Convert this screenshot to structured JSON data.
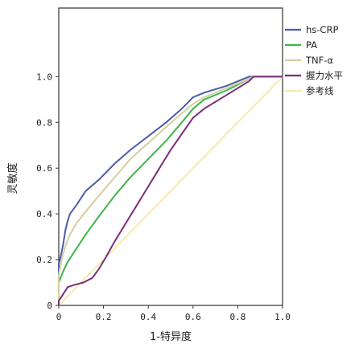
{
  "chart_data": {
    "type": "line",
    "xlabel": "1-特异度",
    "ylabel": "灵敏度",
    "xlim": [
      0,
      1.0
    ],
    "ylim": [
      0,
      1.3
    ],
    "x_ticks": [
      "0",
      "0.2",
      "0.4",
      "0.6",
      "0.8",
      "1.0"
    ],
    "y_ticks": [
      "0",
      "0.2",
      "0.4",
      "0.6",
      "0.8",
      "1.0"
    ],
    "x_tick_values": [
      0,
      0.2,
      0.4,
      0.6,
      0.8,
      1.0
    ],
    "y_tick_values": [
      0,
      0.2,
      0.4,
      0.6,
      0.8,
      1.0
    ],
    "legend_position": "top-right",
    "grid": false,
    "series": [
      {
        "name": "hs-CRP",
        "color": "#4a5ea8",
        "points": [
          [
            0,
            0
          ],
          [
            0,
            0.18
          ],
          [
            0.01,
            0.22
          ],
          [
            0.02,
            0.27
          ],
          [
            0.03,
            0.33
          ],
          [
            0.04,
            0.37
          ],
          [
            0.05,
            0.4
          ],
          [
            0.08,
            0.44
          ],
          [
            0.12,
            0.5
          ],
          [
            0.18,
            0.55
          ],
          [
            0.25,
            0.62
          ],
          [
            0.32,
            0.68
          ],
          [
            0.4,
            0.74
          ],
          [
            0.48,
            0.8
          ],
          [
            0.55,
            0.86
          ],
          [
            0.6,
            0.91
          ],
          [
            0.65,
            0.93
          ],
          [
            0.75,
            0.96
          ],
          [
            0.85,
            1.0
          ],
          [
            1.0,
            1.0
          ]
        ]
      },
      {
        "name": "PA",
        "color": "#3fb54a",
        "points": [
          [
            0,
            0
          ],
          [
            0,
            0.1
          ],
          [
            0.02,
            0.15
          ],
          [
            0.04,
            0.19
          ],
          [
            0.08,
            0.25
          ],
          [
            0.12,
            0.31
          ],
          [
            0.18,
            0.39
          ],
          [
            0.25,
            0.48
          ],
          [
            0.32,
            0.56
          ],
          [
            0.4,
            0.64
          ],
          [
            0.48,
            0.72
          ],
          [
            0.55,
            0.8
          ],
          [
            0.6,
            0.86
          ],
          [
            0.65,
            0.9
          ],
          [
            0.75,
            0.94
          ],
          [
            0.85,
            0.99
          ],
          [
            0.87,
            1.0
          ],
          [
            1.0,
            1.0
          ]
        ]
      },
      {
        "name": "TNF-α",
        "color": "#d4cfa0",
        "points": [
          [
            0,
            0
          ],
          [
            0,
            0.13
          ],
          [
            0.01,
            0.19
          ],
          [
            0.03,
            0.26
          ],
          [
            0.05,
            0.31
          ],
          [
            0.08,
            0.36
          ],
          [
            0.12,
            0.41
          ],
          [
            0.18,
            0.48
          ],
          [
            0.25,
            0.56
          ],
          [
            0.32,
            0.64
          ],
          [
            0.4,
            0.71
          ],
          [
            0.48,
            0.78
          ],
          [
            0.55,
            0.84
          ],
          [
            0.6,
            0.88
          ],
          [
            0.65,
            0.91
          ],
          [
            0.75,
            0.95
          ],
          [
            0.85,
            0.99
          ],
          [
            0.87,
            1.0
          ],
          [
            1.0,
            1.0
          ]
        ]
      },
      {
        "name": "握力水平",
        "color": "#7a2f7a",
        "points": [
          [
            0,
            0
          ],
          [
            0,
            0.02
          ],
          [
            0.02,
            0.05
          ],
          [
            0.04,
            0.08
          ],
          [
            0.07,
            0.09
          ],
          [
            0.11,
            0.1
          ],
          [
            0.15,
            0.12
          ],
          [
            0.18,
            0.16
          ],
          [
            0.21,
            0.21
          ],
          [
            0.25,
            0.28
          ],
          [
            0.3,
            0.36
          ],
          [
            0.35,
            0.44
          ],
          [
            0.4,
            0.52
          ],
          [
            0.45,
            0.6
          ],
          [
            0.5,
            0.68
          ],
          [
            0.55,
            0.75
          ],
          [
            0.6,
            0.82
          ],
          [
            0.65,
            0.86
          ],
          [
            0.75,
            0.92
          ],
          [
            0.85,
            0.98
          ],
          [
            0.87,
            1.0
          ],
          [
            1.0,
            1.0
          ]
        ]
      },
      {
        "name": "参考线",
        "color": "#f5e9a8",
        "points": [
          [
            0,
            0
          ],
          [
            1.0,
            1.0
          ]
        ]
      }
    ]
  }
}
